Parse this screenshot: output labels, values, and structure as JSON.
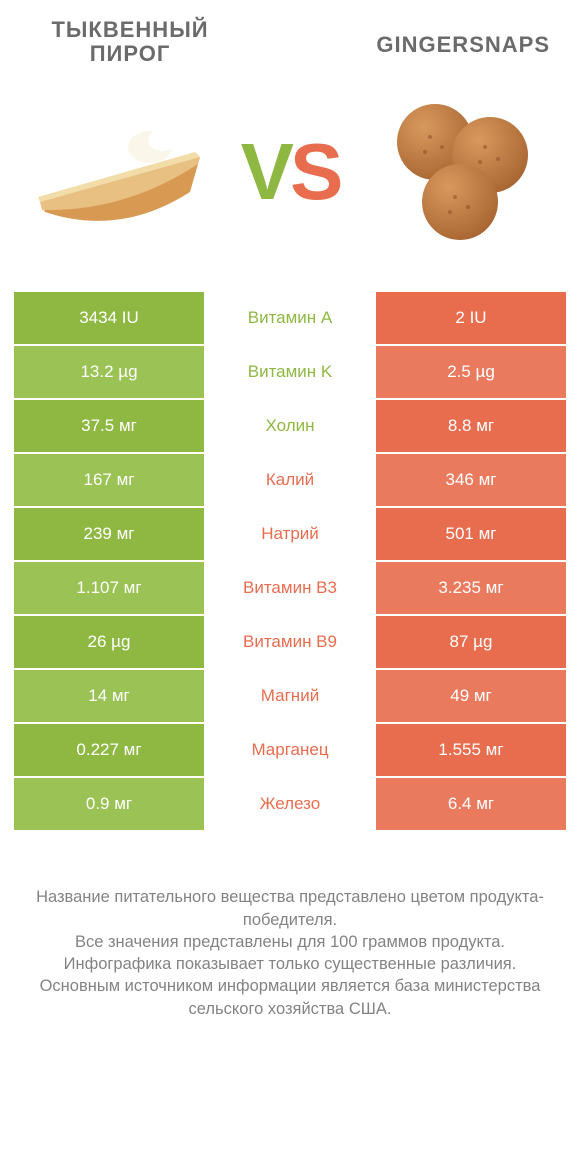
{
  "header": {
    "left_title_line1": "ТЫКВЕННЫЙ",
    "left_title_line2": "ПИРОГ",
    "right_title": "GINGERSNAPS"
  },
  "vs": {
    "v": "V",
    "s": "S"
  },
  "colors": {
    "green": "#8fb843",
    "green_alt": "#9ac254",
    "orange": "#e86d4f",
    "orange_alt": "#ea7a5e",
    "text_gray": "#6b6b6b",
    "footer_gray": "#838383"
  },
  "rows": [
    {
      "nutrient": "Витамин A",
      "left": "3434 IU",
      "right": "2 IU",
      "winner": "left"
    },
    {
      "nutrient": "Витамин K",
      "left": "13.2 µg",
      "right": "2.5 µg",
      "winner": "left"
    },
    {
      "nutrient": "Холин",
      "left": "37.5 мг",
      "right": "8.8 мг",
      "winner": "left"
    },
    {
      "nutrient": "Калий",
      "left": "167 мг",
      "right": "346 мг",
      "winner": "right"
    },
    {
      "nutrient": "Натрий",
      "left": "239 мг",
      "right": "501 мг",
      "winner": "right"
    },
    {
      "nutrient": "Витамин B3",
      "left": "1.107 мг",
      "right": "3.235 мг",
      "winner": "right"
    },
    {
      "nutrient": "Витамин B9",
      "left": "26 µg",
      "right": "87 µg",
      "winner": "right"
    },
    {
      "nutrient": "Магний",
      "left": "14 мг",
      "right": "49 мг",
      "winner": "right"
    },
    {
      "nutrient": "Марганец",
      "left": "0.227 мг",
      "right": "1.555 мг",
      "winner": "right"
    },
    {
      "nutrient": "Железо",
      "left": "0.9 мг",
      "right": "6.4 мг",
      "winner": "right"
    }
  ],
  "footer": {
    "line1": "Название питательного вещества представлено цветом продукта-победителя.",
    "line2": "Все значения представлены для 100 граммов продукта.",
    "line3": "Инфографика показывает только существенные различия.",
    "line4": "Основным источником информации является база министерства сельского хозяйства США."
  }
}
